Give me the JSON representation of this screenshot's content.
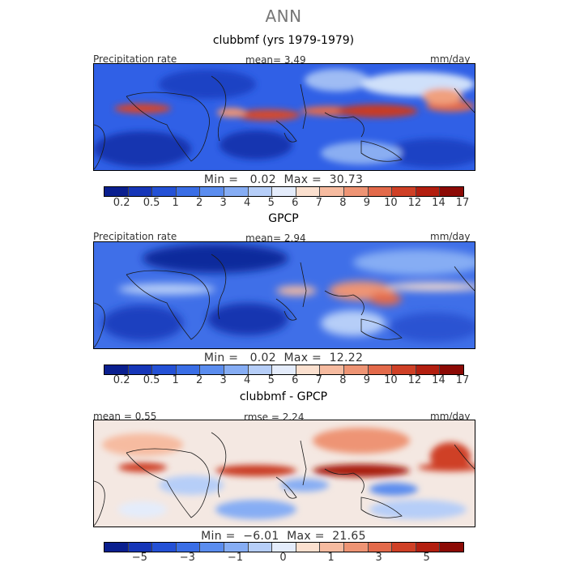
{
  "title": "ANN",
  "panels": [
    {
      "id": "top",
      "title": "clubbmf (yrs 1979-1979)",
      "left_label": "Precipitation rate",
      "center_label": "mean=   3.49",
      "right_label": "mm/day",
      "stats": "Min =   0.02  Max =  30.73",
      "colorbar": {
        "colors": [
          "#0a1f8f",
          "#1636b8",
          "#2451d6",
          "#3a6ee6",
          "#5b8def",
          "#86adf4",
          "#b6cef8",
          "#e4ecfb",
          "#fbe0cf",
          "#f6bba0",
          "#ee9474",
          "#e36a4b",
          "#cf4026",
          "#b31f10",
          "#8c0a05"
        ],
        "ticks": [
          "0.2",
          "0.5",
          "1",
          "2",
          "3",
          "4",
          "5",
          "6",
          "7",
          "8",
          "9",
          "10",
          "12",
          "14",
          "17"
        ]
      }
    },
    {
      "id": "middle",
      "title": "GPCP",
      "left_label": "Precipitation rate",
      "center_label": "mean=   2.94",
      "right_label": "mm/day",
      "stats": "Min =   0.02  Max =  12.22",
      "colorbar": {
        "colors": [
          "#0a1f8f",
          "#1636b8",
          "#2451d6",
          "#3a6ee6",
          "#5b8def",
          "#86adf4",
          "#b6cef8",
          "#e4ecfb",
          "#fbe0cf",
          "#f6bba0",
          "#ee9474",
          "#e36a4b",
          "#cf4026",
          "#b31f10",
          "#8c0a05"
        ],
        "ticks": [
          "0.2",
          "0.5",
          "1",
          "2",
          "3",
          "4",
          "5",
          "6",
          "7",
          "8",
          "9",
          "10",
          "12",
          "14",
          "17"
        ]
      }
    },
    {
      "id": "bottom",
      "title": "clubbmf - GPCP",
      "left_label": "mean =   0.55",
      "center_label": "rmse =   2.24",
      "right_label": "mm/day",
      "stats": "Min =  −6.01  Max =  21.65",
      "colorbar": {
        "colors": [
          "#0a1f8f",
          "#1636b8",
          "#2451d6",
          "#3a6ee6",
          "#5b8def",
          "#86adf4",
          "#b6cef8",
          "#e4ecfb",
          "#fbe0cf",
          "#f6bba0",
          "#ee9474",
          "#e36a4b",
          "#cf4026",
          "#b31f10",
          "#8c0a05"
        ],
        "ticks": [
          "−5",
          "−3",
          "−1",
          "0",
          "1",
          "3",
          "5"
        ]
      }
    }
  ]
}
